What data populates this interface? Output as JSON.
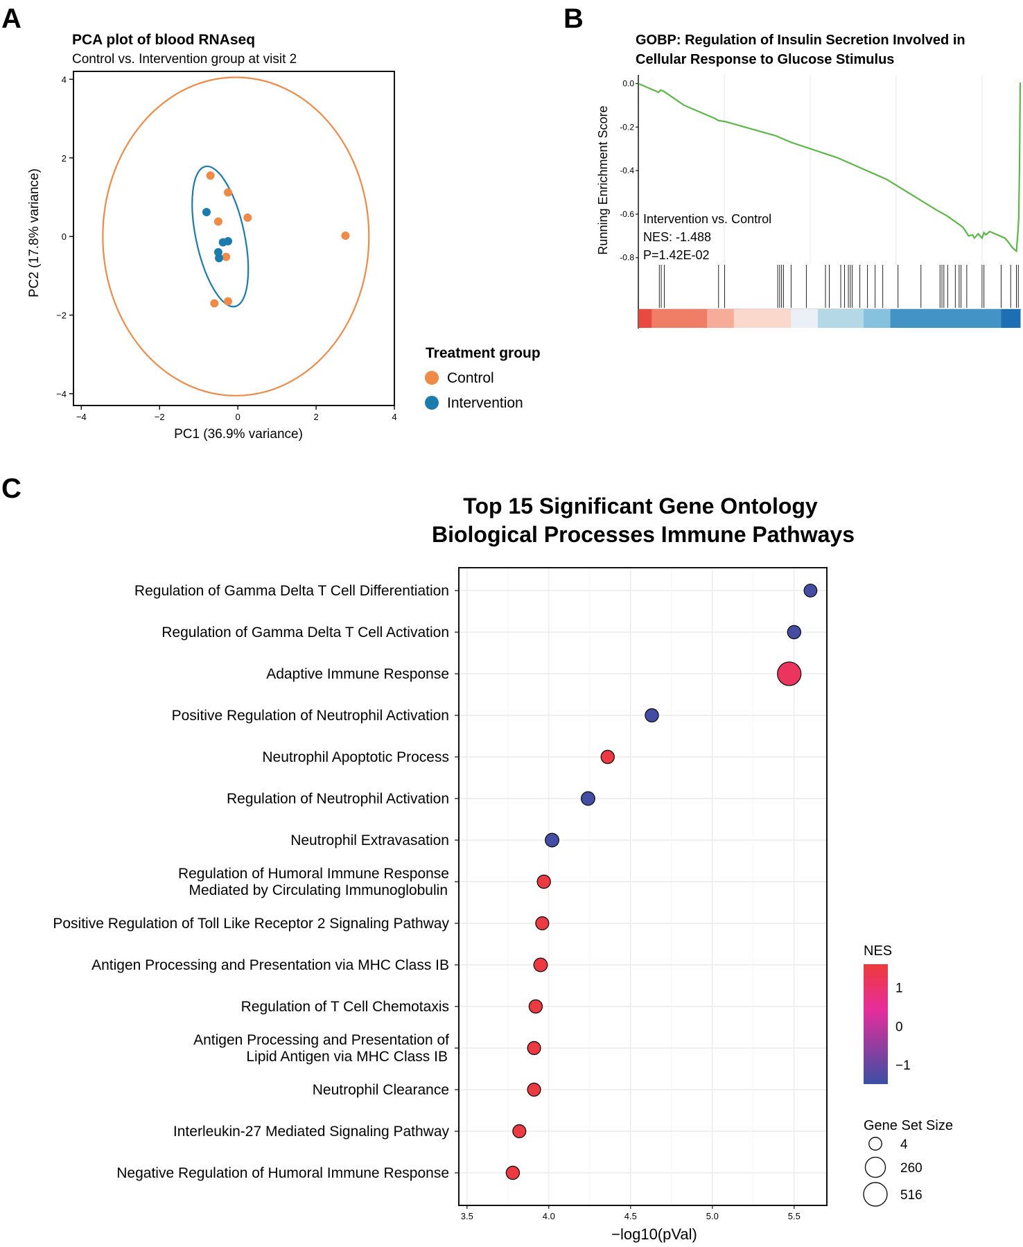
{
  "panels": {
    "a": "A",
    "b": "B",
    "c": "C"
  },
  "colors": {
    "control": "#ef8a47",
    "intervention": "#1b7bad",
    "gsea_line": "#5cb846",
    "nes_low": "#3a4fa3",
    "nes_mid": "#e62e9c",
    "nes_high": "#ee3a3a",
    "grid": "#ebebeb"
  },
  "pca": {
    "chart_data": {
      "type": "scatter",
      "title": "PCA plot of blood RNAseq",
      "subtitle": "Control vs. Intervention group at visit 2",
      "xlabel": "PC1 (36.9% variance)",
      "ylabel": "PC2 (17.8% variance)",
      "xlim": [
        -4.2,
        4.0
      ],
      "ylim": [
        -4.3,
        4.2
      ],
      "xticks": [
        -4,
        -2,
        0,
        2,
        4
      ],
      "yticks": [
        -4,
        -2,
        0,
        2,
        4
      ],
      "xtick_labels": [
        "−4",
        "−2",
        "0",
        "2",
        "4"
      ],
      "ytick_labels": [
        "−4",
        "−2",
        "0",
        "2",
        "4"
      ],
      "series": [
        {
          "name": "Control",
          "points": [
            [
              -0.7,
              1.55
            ],
            [
              -0.25,
              1.12
            ],
            [
              0.25,
              0.48
            ],
            [
              -0.5,
              0.38
            ],
            [
              -0.3,
              -0.52
            ],
            [
              -0.6,
              -1.7
            ],
            [
              -0.25,
              -1.65
            ],
            [
              2.75,
              0.02
            ]
          ]
        },
        {
          "name": "Intervention",
          "points": [
            [
              -0.8,
              0.62
            ],
            [
              -0.38,
              -0.15
            ],
            [
              -0.25,
              -0.12
            ],
            [
              -0.5,
              -0.4
            ],
            [
              -0.48,
              -0.55
            ]
          ]
        }
      ],
      "ellipses": [
        {
          "group": "Control",
          "cx": -0.05,
          "cy": 0.0,
          "rx": 3.4,
          "ry": 4.05,
          "angle_deg": 0
        },
        {
          "group": "Intervention",
          "cx": -0.45,
          "cy": 0.0,
          "rx": 0.62,
          "ry": 1.82,
          "angle_deg": -12
        }
      ]
    },
    "legend": {
      "title": "Treatment group",
      "items": [
        "Control",
        "Intervention"
      ]
    }
  },
  "gsea": {
    "chart_data": {
      "type": "line",
      "title_lines": [
        "GOBP: Regulation of Insulin Secretion Involved in",
        "Cellular Response to Glucose Stimulus"
      ],
      "ylabel": "Running Enrichment Score",
      "ylim": [
        -0.82,
        0.04
      ],
      "yticks": [
        0.0,
        -0.2,
        -0.4,
        -0.6,
        -0.8
      ],
      "ytick_labels": [
        "0.0",
        "-0.2",
        "-0.4",
        "-0.6",
        "-0.8"
      ],
      "xlim": [
        0,
        1
      ],
      "vgrid": [
        0.225,
        0.45,
        0.675,
        0.9
      ],
      "points": [
        [
          0,
          0
        ],
        [
          0.053,
          -0.04
        ],
        [
          0.058,
          -0.03
        ],
        [
          0.066,
          -0.035
        ],
        [
          0.12,
          -0.1
        ],
        [
          0.2,
          -0.16
        ],
        [
          0.21,
          -0.17
        ],
        [
          0.228,
          -0.175
        ],
        [
          0.36,
          -0.24
        ],
        [
          0.4,
          -0.27
        ],
        [
          0.52,
          -0.34
        ],
        [
          0.65,
          -0.44
        ],
        [
          0.78,
          -0.58
        ],
        [
          0.81,
          -0.61
        ],
        [
          0.85,
          -0.66
        ],
        [
          0.865,
          -0.7
        ],
        [
          0.875,
          -0.695
        ],
        [
          0.88,
          -0.71
        ],
        [
          0.89,
          -0.69
        ],
        [
          0.9,
          -0.71
        ],
        [
          0.905,
          -0.685
        ],
        [
          0.91,
          -0.695
        ],
        [
          0.92,
          -0.68
        ],
        [
          0.96,
          -0.71
        ],
        [
          0.965,
          -0.72
        ],
        [
          0.98,
          -0.755
        ],
        [
          0.99,
          -0.77
        ],
        [
          0.994,
          -0.68
        ],
        [
          0.996,
          -0.62
        ],
        [
          0.998,
          -0.4
        ],
        [
          0.999,
          -0.2
        ],
        [
          1.0,
          0.005
        ]
      ],
      "hits": [
        0.055,
        0.06,
        0.068,
        0.21,
        0.226,
        0.365,
        0.37,
        0.375,
        0.38,
        0.4,
        0.44,
        0.49,
        0.5,
        0.53,
        0.54,
        0.55,
        0.555,
        0.56,
        0.58,
        0.6,
        0.62,
        0.64,
        0.68,
        0.74,
        0.79,
        0.795,
        0.8,
        0.81,
        0.83,
        0.84,
        0.845,
        0.86,
        0.9,
        0.905,
        0.95,
        0.975,
        0.99,
        0.995
      ],
      "rank_bands": [
        {
          "to": 0.035,
          "color": "#e84a40"
        },
        {
          "to": 0.18,
          "color": "#f07e66"
        },
        {
          "to": 0.25,
          "color": "#f6ac98"
        },
        {
          "to": 0.4,
          "color": "#fbd8cc"
        },
        {
          "to": 0.47,
          "color": "#eaf0f6"
        },
        {
          "to": 0.59,
          "color": "#b5d8e6"
        },
        {
          "to": 0.66,
          "color": "#86c1dd"
        },
        {
          "to": 0.95,
          "color": "#4393c7"
        },
        {
          "to": 1.0,
          "color": "#1e6eb4"
        }
      ],
      "annotation_lines": [
        "Intervention vs. Control",
        "NES: -1.488",
        "P=1.42E-02"
      ]
    }
  },
  "go": {
    "chart_data": {
      "type": "scatter",
      "title_lines": [
        "Top 15 Significant Gene Ontology",
        "Biological Processes Immune Pathways"
      ],
      "xlabel": "−log10(pVal)",
      "xlim": [
        3.45,
        5.7
      ],
      "xticks": [
        3.5,
        4.0,
        4.5,
        5.0,
        5.5
      ],
      "xtick_labels": [
        "3.5",
        "4.0",
        "4.5",
        "5.0",
        "5.5"
      ],
      "pathways": [
        {
          "label": [
            "Regulation of Gamma Delta T Cell Differentiation"
          ],
          "x": 5.6,
          "nes": -1.4,
          "size": 4
        },
        {
          "label": [
            "Regulation of Gamma Delta T Cell Activation"
          ],
          "x": 5.5,
          "nes": -1.4,
          "size": 8
        },
        {
          "label": [
            "Adaptive Immune Response"
          ],
          "x": 5.47,
          "nes": 1.15,
          "size": 516
        },
        {
          "label": [
            "Positive Regulation of Neutrophil Activation"
          ],
          "x": 4.63,
          "nes": -1.4,
          "size": 8
        },
        {
          "label": [
            "Neutrophil Apoptotic Process"
          ],
          "x": 4.36,
          "nes": 1.5,
          "size": 8
        },
        {
          "label": [
            "Regulation of Neutrophil Activation"
          ],
          "x": 4.24,
          "nes": -1.4,
          "size": 12
        },
        {
          "label": [
            "Neutrophil Extravasation"
          ],
          "x": 4.02,
          "nes": -1.4,
          "size": 12
        },
        {
          "label": [
            "Regulation of Humoral Immune Response",
            "Mediated by Circulating Immunoglobulin"
          ],
          "x": 3.97,
          "nes": 1.5,
          "size": 8
        },
        {
          "label": [
            "Positive Regulation of Toll Like Receptor 2 Signaling Pathway"
          ],
          "x": 3.96,
          "nes": 1.5,
          "size": 6
        },
        {
          "label": [
            "Antigen Processing and Presentation via MHC Class IB"
          ],
          "x": 3.95,
          "nes": 1.5,
          "size": 12
        },
        {
          "label": [
            "Regulation of T Cell Chemotaxis"
          ],
          "x": 3.92,
          "nes": 1.5,
          "size": 8
        },
        {
          "label": [
            "Antigen Processing and Presentation of",
            "Lipid Antigen via MHC Class IB"
          ],
          "x": 3.91,
          "nes": 1.5,
          "size": 6
        },
        {
          "label": [
            "Neutrophil Clearance"
          ],
          "x": 3.91,
          "nes": 1.5,
          "size": 6
        },
        {
          "label": [
            "Interleukin-27 Mediated Signaling Pathway"
          ],
          "x": 3.82,
          "nes": 1.5,
          "size": 6
        },
        {
          "label": [
            "Negative Regulation of Humoral Immune Response"
          ],
          "x": 3.78,
          "nes": 1.5,
          "size": 8
        }
      ],
      "legend": {
        "nes_title": "NES",
        "nes_range": [
          -1.5,
          1.6
        ],
        "nes_ticks": [
          1,
          0,
          -1
        ],
        "nes_tick_labels": [
          "1",
          "0",
          "−1"
        ],
        "size_title": "Gene Set Size",
        "size_values": [
          4,
          260,
          516
        ],
        "size_labels": [
          "4",
          "260",
          "516"
        ]
      }
    }
  }
}
